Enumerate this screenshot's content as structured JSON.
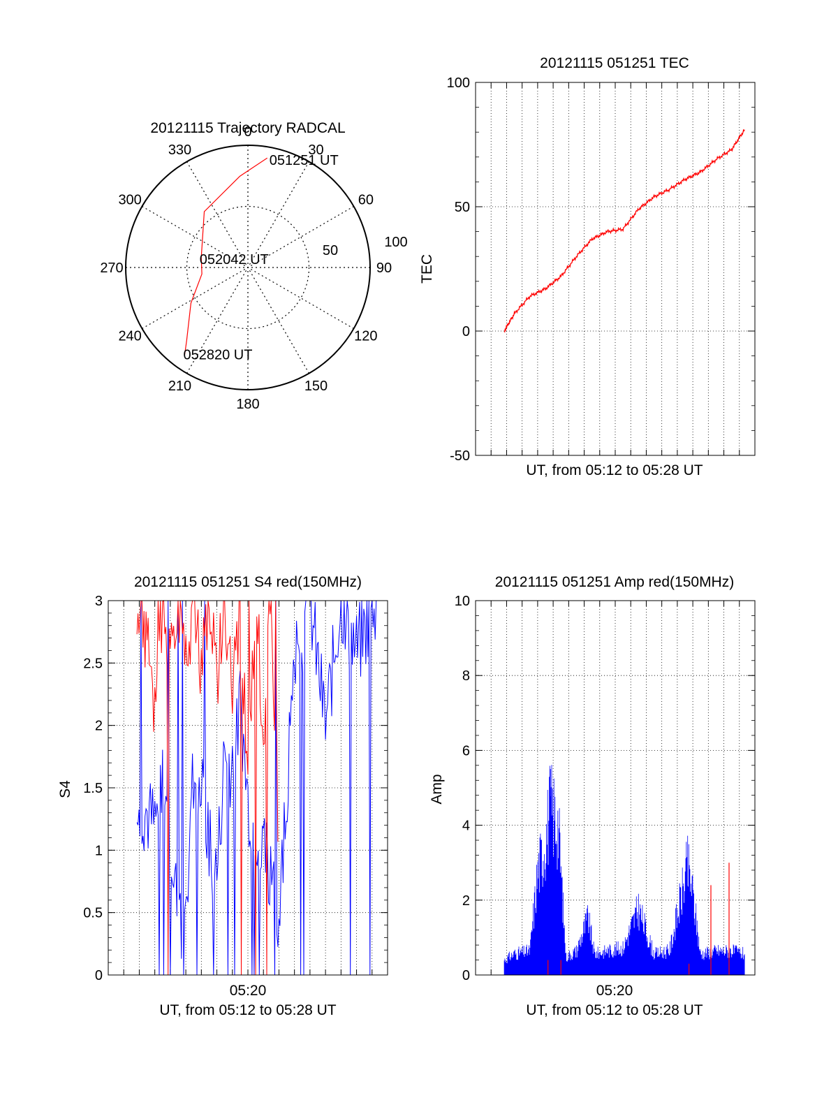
{
  "colors": {
    "red": "#ff0000",
    "blue": "#0000ff",
    "axis": "#000000",
    "grid": "#000000"
  },
  "chart_data": [
    {
      "type": "polar",
      "title": "20121115 Trajectory RADCAL",
      "azimuth_labels": [
        "0",
        "30",
        "60",
        "90",
        "120",
        "150",
        "180",
        "210",
        "240",
        "270",
        "300",
        "330"
      ],
      "radial_labels": [
        "50",
        "100"
      ],
      "rlim": [
        0,
        100
      ],
      "grid": true,
      "series": [
        {
          "color": "red",
          "points": [
            {
              "az": 10,
              "r": 91
            },
            {
              "az": 355,
              "r": 75
            },
            {
              "az": 322,
              "r": 58
            },
            {
              "az": 282,
              "r": 39
            },
            {
              "az": 262,
              "r": 38
            },
            {
              "az": 238,
              "r": 55
            },
            {
              "az": 220,
              "r": 78
            },
            {
              "az": 216,
              "r": 88
            }
          ]
        }
      ],
      "annotations": [
        {
          "text": "051251 UT",
          "az": 12,
          "r": 90
        },
        {
          "text": "052042 UT",
          "az": 280,
          "r": 39
        },
        {
          "text": "052820 UT",
          "az": 216,
          "r": 88
        }
      ]
    },
    {
      "type": "line",
      "title": "20121115 051251 TEC",
      "xlabel": "UT, from 05:12 to 05:28 UT",
      "ylabel": "TEC",
      "xlim": [
        "05:11",
        "05:29"
      ],
      "ylim": [
        -50,
        100
      ],
      "yticks": [
        "-50",
        "0",
        "50",
        "100"
      ],
      "grid": true,
      "series": [
        {
          "color": "red",
          "x": [
            "05:12:51",
            "05:13:30",
            "05:14:30",
            "05:15:30",
            "05:16:30",
            "05:17:30",
            "05:18:30",
            "05:19:30",
            "05:20:30",
            "05:21:30",
            "05:22:30",
            "05:23:30",
            "05:24:30",
            "05:25:30",
            "05:26:30",
            "05:27:30",
            "05:28:20"
          ],
          "y": [
            0,
            7,
            14,
            17,
            22,
            30,
            37,
            40,
            41,
            49,
            54,
            57,
            61,
            64,
            69,
            73,
            81
          ]
        }
      ]
    },
    {
      "type": "line",
      "title": "20121115 051251 S4 red(150MHz)",
      "xlabel": "UT, from 05:12 to 05:28 UT",
      "ylabel": "S4",
      "xtick_labels": [
        "05:20"
      ],
      "xlim": [
        "05:11",
        "05:29"
      ],
      "ylim": [
        0,
        3
      ],
      "yticks": [
        "0",
        "0.5",
        "1",
        "1.5",
        "2",
        "2.5",
        "3"
      ],
      "grid": true,
      "series": [
        {
          "color": "blue",
          "x": [
            "05:12:51",
            "05:13:30",
            "05:14:00",
            "05:14:30",
            "05:15:00",
            "05:15:30",
            "05:16:00",
            "05:16:30",
            "05:17:00",
            "05:17:30",
            "05:18:00",
            "05:18:30",
            "05:19:00",
            "05:19:30",
            "05:20:00",
            "05:21:00",
            "05:22:00",
            "05:23:00",
            "05:24:00",
            "05:25:00",
            "05:26:00",
            "05:27:00",
            "05:28:20"
          ],
          "y": [
            1.4,
            1.3,
            1.2,
            1.5,
            1.1,
            0.5,
            0.45,
            1.6,
            1.5,
            1.1,
            0.8,
            1.8,
            1.5,
            2.2,
            1.4,
            1.0,
            0.4,
            2.5,
            3.0,
            2.0,
            3.0,
            2.6,
            3.0
          ]
        },
        {
          "color": "red",
          "x": [
            "05:12:51",
            "05:13:30",
            "05:14:00",
            "05:14:30",
            "05:15:00",
            "05:15:30",
            "05:16:00",
            "05:16:30",
            "05:17:00",
            "05:17:30",
            "05:18:00",
            "05:18:30",
            "05:19:00",
            "05:19:30",
            "05:20:00",
            "05:20:30",
            "05:21:00",
            "05:21:30",
            "05:22:00"
          ],
          "y": [
            3.0,
            2.7,
            2.2,
            3.0,
            2.6,
            3.0,
            2.4,
            3.0,
            2.5,
            3.0,
            2.3,
            3.0,
            2.2,
            3.0,
            1.5,
            3.0,
            2.0,
            3.0,
            1.0
          ]
        }
      ]
    },
    {
      "type": "line",
      "title": "20121115 051251 Amp red(150MHz)",
      "xlabel": "UT, from 05:12 to 05:28 UT",
      "ylabel": "Amp",
      "xtick_labels": [
        "05:20"
      ],
      "xlim": [
        "05:11",
        "05:29"
      ],
      "ylim": [
        0,
        10
      ],
      "yticks": [
        "0",
        "2",
        "4",
        "6",
        "8",
        "10"
      ],
      "grid": true,
      "series": [
        {
          "color": "blue",
          "x": [
            "05:12:51",
            "05:13:30",
            "05:14:30",
            "05:15:00",
            "05:15:30",
            "05:15:50",
            "05:16:20",
            "05:16:50",
            "05:17:30",
            "05:18:15",
            "05:18:40",
            "05:19:30",
            "05:20:30",
            "05:21:30",
            "05:22:30",
            "05:23:30",
            "05:24:40",
            "05:24:55",
            "05:25:30",
            "05:26:30",
            "05:27:30",
            "05:28:20"
          ],
          "y": [
            0.5,
            0.7,
            0.8,
            3.4,
            4.5,
            5.6,
            5.0,
            0.6,
            0.8,
            1.9,
            0.7,
            0.8,
            0.9,
            2.2,
            0.7,
            0.8,
            3.6,
            3.0,
            0.7,
            0.8,
            0.8,
            0.7
          ]
        },
        {
          "color": "red",
          "x": [
            "05:15:40",
            "05:16:30",
            "05:24:45",
            "05:26:10",
            "05:27:20"
          ],
          "y": [
            0.4,
            0.4,
            0.3,
            2.4,
            3.0
          ]
        }
      ]
    }
  ]
}
